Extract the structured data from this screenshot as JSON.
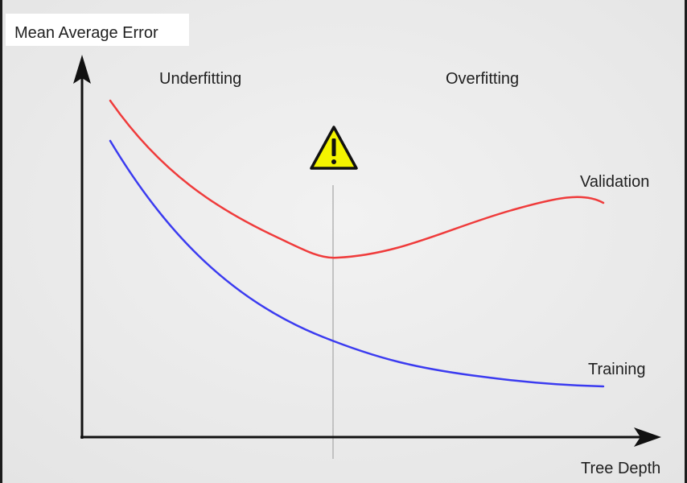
{
  "axes": {
    "y_label": "Mean Average Error",
    "x_label": "Tree Depth"
  },
  "regions": {
    "left": "Underfitting",
    "right": "Overfitting"
  },
  "curves": [
    {
      "name": "Validation",
      "color": "#ef3b3b"
    },
    {
      "name": "Training",
      "color": "#3b3bf0"
    }
  ],
  "warning": {
    "icon": "warning-triangle-icon",
    "symbol": "!",
    "fill": "#f4f400"
  },
  "colors": {
    "panel": "#ececec",
    "axis": "#111111",
    "divider": "#b4b4b4"
  }
}
